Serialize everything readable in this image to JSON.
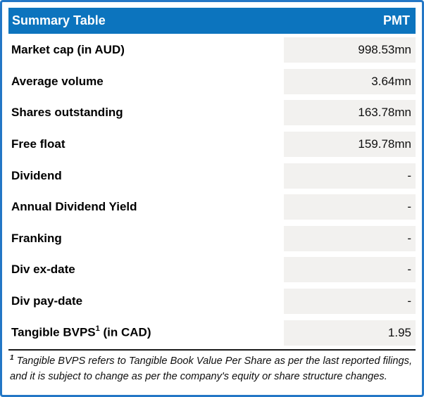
{
  "table": {
    "header": {
      "title": "Summary Table",
      "ticker": "PMT"
    },
    "rows": [
      {
        "label": "Market cap (in AUD)",
        "value": "998.53mn"
      },
      {
        "label": "Average volume",
        "value": "3.64mn"
      },
      {
        "label": "Shares outstanding",
        "value": "163.78mn"
      },
      {
        "label": "Free float",
        "value": "159.78mn"
      },
      {
        "label": "Dividend",
        "value": "-"
      },
      {
        "label": "Annual Dividend Yield",
        "value": "-"
      },
      {
        "label": "Franking",
        "value": "-"
      },
      {
        "label": "Div ex-date",
        "value": "-"
      },
      {
        "label": "Div pay-date",
        "value": "-"
      },
      {
        "label": "Tangible BVPS",
        "label_sup": "1",
        "label_rest": " (in CAD)",
        "value": "1.95"
      }
    ],
    "footnote": {
      "marker": "1",
      "text": " Tangible BVPS refers to Tangible Book Value Per Share as per the last reported filings, and it is subject to change as per the company's equity or share structure changes."
    }
  },
  "colors": {
    "header_bg": "#0C74BE",
    "header_text": "#FFFFFF",
    "outer_border": "#2377C6",
    "value_cell_bg": "#F2F1EF",
    "label_text": "#000000",
    "divider": "#1A1A1A"
  }
}
